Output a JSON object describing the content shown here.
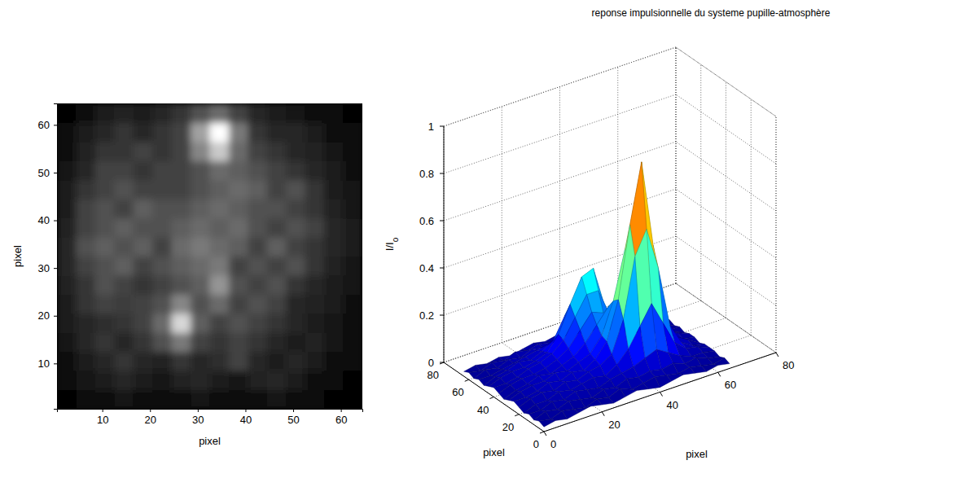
{
  "chart_data": [
    {
      "type": "heatmap",
      "xlabel": "pixel",
      "ylabel": "pixel",
      "color": "gray",
      "xlim": [
        0.5,
        64.5
      ],
      "ylim": [
        0.5,
        64.5
      ],
      "xticks": [
        10,
        20,
        30,
        40,
        50,
        60
      ],
      "yticks": [
        10,
        20,
        30,
        40,
        50,
        60
      ],
      "cells": [
        [
          0.05,
          0.08,
          0.1,
          0.12,
          0.1,
          0.08,
          0.1,
          0.12,
          0.1,
          0.08,
          0.1,
          0.12,
          0.1,
          0.08,
          0.06,
          0.05
        ],
        [
          0.08,
          0.12,
          0.15,
          0.2,
          0.15,
          0.12,
          0.18,
          0.2,
          0.15,
          0.12,
          0.18,
          0.2,
          0.15,
          0.1,
          0.08,
          0.06
        ],
        [
          0.1,
          0.15,
          0.2,
          0.25,
          0.2,
          0.18,
          0.25,
          0.2,
          0.22,
          0.3,
          0.2,
          0.15,
          0.2,
          0.15,
          0.1,
          0.08
        ],
        [
          0.12,
          0.2,
          0.25,
          0.2,
          0.25,
          0.35,
          0.5,
          0.3,
          0.25,
          0.3,
          0.25,
          0.2,
          0.15,
          0.18,
          0.12,
          0.1
        ],
        [
          0.15,
          0.2,
          0.22,
          0.25,
          0.3,
          0.45,
          0.85,
          0.4,
          0.3,
          0.35,
          0.3,
          0.25,
          0.2,
          0.15,
          0.12,
          0.1
        ],
        [
          0.15,
          0.25,
          0.3,
          0.28,
          0.3,
          0.35,
          0.55,
          0.35,
          0.45,
          0.3,
          0.35,
          0.3,
          0.2,
          0.18,
          0.15,
          0.1
        ],
        [
          0.18,
          0.25,
          0.35,
          0.3,
          0.25,
          0.3,
          0.35,
          0.4,
          0.6,
          0.35,
          0.3,
          0.35,
          0.25,
          0.2,
          0.15,
          0.12
        ],
        [
          0.2,
          0.3,
          0.35,
          0.4,
          0.3,
          0.35,
          0.4,
          0.45,
          0.5,
          0.3,
          0.35,
          0.3,
          0.35,
          0.25,
          0.18,
          0.12
        ],
        [
          0.2,
          0.35,
          0.4,
          0.35,
          0.4,
          0.3,
          0.45,
          0.5,
          0.45,
          0.4,
          0.3,
          0.4,
          0.3,
          0.25,
          0.2,
          0.15
        ],
        [
          0.18,
          0.3,
          0.35,
          0.4,
          0.35,
          0.35,
          0.4,
          0.45,
          0.4,
          0.45,
          0.35,
          0.3,
          0.35,
          0.3,
          0.2,
          0.15
        ],
        [
          0.15,
          0.3,
          0.35,
          0.3,
          0.4,
          0.35,
          0.35,
          0.4,
          0.45,
          0.4,
          0.35,
          0.35,
          0.3,
          0.25,
          0.18,
          0.12
        ],
        [
          0.15,
          0.25,
          0.3,
          0.35,
          0.3,
          0.3,
          0.3,
          0.35,
          0.4,
          0.45,
          0.4,
          0.3,
          0.35,
          0.25,
          0.15,
          0.12
        ],
        [
          0.12,
          0.2,
          0.3,
          0.3,
          0.25,
          0.3,
          0.3,
          0.35,
          0.45,
          0.4,
          0.35,
          0.3,
          0.25,
          0.2,
          0.15,
          0.1
        ],
        [
          0.1,
          0.18,
          0.25,
          0.25,
          0.3,
          0.25,
          0.3,
          0.55,
          0.8,
          0.45,
          0.3,
          0.25,
          0.2,
          0.18,
          0.12,
          0.1
        ],
        [
          0.08,
          0.15,
          0.2,
          0.25,
          0.2,
          0.25,
          0.3,
          0.65,
          1.0,
          0.5,
          0.25,
          0.2,
          0.2,
          0.15,
          0.1,
          0.08
        ],
        [
          0.06,
          0.1,
          0.15,
          0.18,
          0.15,
          0.2,
          0.25,
          0.35,
          0.45,
          0.3,
          0.2,
          0.15,
          0.12,
          0.1,
          0.08,
          0.06
        ]
      ]
    },
    {
      "type": "surface",
      "title": "reponse impulsionnelle du systeme pupille-atmosphère",
      "xlabel": "pixel",
      "ylabel": "pixel",
      "zlabel": "I/Io",
      "color": "jet",
      "grid": true,
      "xlim": [
        0,
        80
      ],
      "ylim": [
        0,
        80
      ],
      "zlim": [
        0,
        1
      ],
      "xticks": [
        0,
        20,
        40,
        60,
        80
      ],
      "yticks": [
        0,
        20,
        40,
        60,
        80
      ],
      "zticks": [
        0,
        0.2,
        0.4,
        0.6,
        0.8,
        1
      ],
      "x": [
        0,
        4,
        8,
        12,
        16,
        20,
        24,
        28,
        32,
        36,
        40,
        44,
        48,
        52,
        56,
        60,
        64
      ],
      "y": [
        0,
        4,
        8,
        12,
        16,
        20,
        24,
        28,
        32,
        36,
        40,
        44,
        48,
        52,
        56,
        60,
        64
      ],
      "z": [
        [
          0.02,
          0.03,
          0.02,
          0.03,
          0.04,
          0.03,
          0.02,
          0.03,
          0.04,
          0.03,
          0.02,
          0.03,
          0.04,
          0.03,
          0.02,
          0.03,
          0.02
        ],
        [
          0.03,
          0.02,
          0.04,
          0.03,
          0.02,
          0.04,
          0.03,
          0.05,
          0.03,
          0.04,
          0.05,
          0.04,
          0.03,
          0.04,
          0.03,
          0.02,
          0.03
        ],
        [
          0.02,
          0.04,
          0.03,
          0.05,
          0.04,
          0.03,
          0.05,
          0.04,
          0.06,
          0.05,
          0.06,
          0.05,
          0.06,
          0.04,
          0.05,
          0.03,
          0.02
        ],
        [
          0.03,
          0.03,
          0.05,
          0.04,
          0.06,
          0.05,
          0.04,
          0.06,
          0.07,
          0.08,
          0.1,
          0.12,
          0.09,
          0.06,
          0.04,
          0.04,
          0.03
        ],
        [
          0.02,
          0.04,
          0.04,
          0.06,
          0.05,
          0.06,
          0.07,
          0.06,
          0.09,
          0.14,
          0.22,
          0.3,
          0.2,
          0.1,
          0.06,
          0.05,
          0.03
        ],
        [
          0.03,
          0.05,
          0.06,
          0.05,
          0.07,
          0.06,
          0.08,
          0.09,
          0.12,
          0.25,
          0.5,
          0.6,
          0.42,
          0.16,
          0.07,
          0.04,
          0.03
        ],
        [
          0.04,
          0.04,
          0.05,
          0.07,
          0.06,
          0.08,
          0.07,
          0.1,
          0.16,
          0.32,
          0.62,
          0.87,
          0.5,
          0.18,
          0.08,
          0.05,
          0.02
        ],
        [
          0.03,
          0.05,
          0.06,
          0.06,
          0.08,
          0.07,
          0.09,
          0.11,
          0.17,
          0.3,
          0.5,
          0.55,
          0.35,
          0.14,
          0.07,
          0.04,
          0.03
        ],
        [
          0.02,
          0.04,
          0.05,
          0.07,
          0.06,
          0.08,
          0.1,
          0.14,
          0.2,
          0.26,
          0.3,
          0.25,
          0.16,
          0.09,
          0.06,
          0.05,
          0.03
        ],
        [
          0.03,
          0.05,
          0.06,
          0.06,
          0.07,
          0.09,
          0.12,
          0.18,
          0.24,
          0.22,
          0.2,
          0.14,
          0.09,
          0.07,
          0.05,
          0.04,
          0.02
        ],
        [
          0.04,
          0.04,
          0.05,
          0.07,
          0.08,
          0.1,
          0.14,
          0.22,
          0.3,
          0.3,
          0.18,
          0.1,
          0.07,
          0.06,
          0.04,
          0.03,
          0.03
        ],
        [
          0.03,
          0.05,
          0.06,
          0.06,
          0.07,
          0.09,
          0.15,
          0.26,
          0.36,
          0.38,
          0.2,
          0.09,
          0.06,
          0.05,
          0.05,
          0.04,
          0.02
        ],
        [
          0.02,
          0.04,
          0.05,
          0.07,
          0.06,
          0.08,
          0.11,
          0.2,
          0.28,
          0.26,
          0.14,
          0.07,
          0.06,
          0.05,
          0.04,
          0.03,
          0.03
        ],
        [
          0.03,
          0.03,
          0.04,
          0.05,
          0.06,
          0.07,
          0.08,
          0.1,
          0.12,
          0.11,
          0.08,
          0.06,
          0.05,
          0.04,
          0.03,
          0.03,
          0.02
        ],
        [
          0.02,
          0.04,
          0.03,
          0.05,
          0.04,
          0.06,
          0.05,
          0.06,
          0.07,
          0.06,
          0.05,
          0.05,
          0.04,
          0.04,
          0.03,
          0.02,
          0.03
        ],
        [
          0.03,
          0.02,
          0.04,
          0.03,
          0.05,
          0.04,
          0.05,
          0.04,
          0.05,
          0.04,
          0.05,
          0.04,
          0.03,
          0.03,
          0.02,
          0.03,
          0.02
        ],
        [
          0.02,
          0.03,
          0.02,
          0.03,
          0.02,
          0.03,
          0.04,
          0.03,
          0.04,
          0.03,
          0.03,
          0.02,
          0.03,
          0.02,
          0.03,
          0.02,
          0.02
        ]
      ]
    }
  ]
}
